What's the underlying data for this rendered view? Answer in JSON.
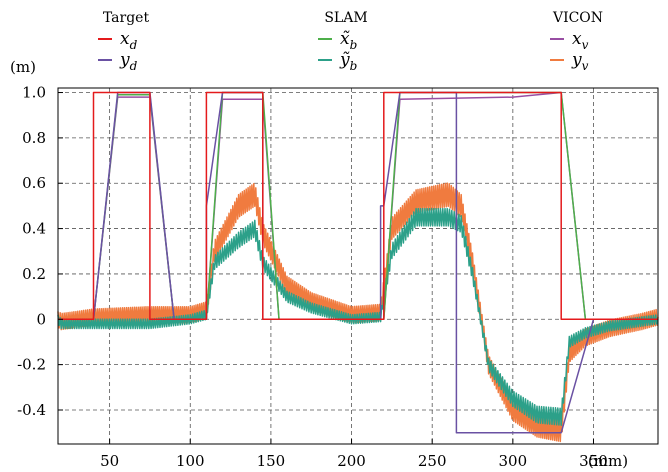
{
  "chart_data": {
    "type": "line",
    "title": "",
    "xlabel": "",
    "ylabel": "",
    "x_unit": "(mm)",
    "y_unit": "(m)",
    "xlim": [
      18,
      390
    ],
    "ylim": [
      -0.55,
      1.02
    ],
    "x_ticks": [
      50,
      100,
      150,
      200,
      250,
      300,
      350
    ],
    "x_tick_labels": [
      "50",
      "100",
      "150",
      "200",
      "250",
      "300",
      "350"
    ],
    "y_ticks": [
      1.0,
      0.8,
      0.6,
      0.4,
      0.2,
      0,
      -0.2,
      -0.4
    ],
    "y_tick_labels": [
      "1.0",
      "0.8",
      "0.6",
      "0.4",
      "0.2",
      "0",
      "-0.2",
      "-0.4"
    ],
    "grid": true,
    "legend_placement": "top",
    "legend_groups": [
      {
        "title": "Target",
        "entries": [
          {
            "label": "x_d",
            "base": "x",
            "sub": "d",
            "tilde": false,
            "color": "#e41a1c"
          },
          {
            "label": "y_d",
            "base": "y",
            "sub": "d",
            "tilde": false,
            "color": "#6a51a3"
          }
        ]
      },
      {
        "title": "SLAM",
        "entries": [
          {
            "label": "x̃_b",
            "base": "x",
            "sub": "b",
            "tilde": true,
            "color": "#4daf4a"
          },
          {
            "label": "ỹ_b",
            "base": "y",
            "sub": "b",
            "tilde": true,
            "color": "#2ca089"
          }
        ]
      },
      {
        "title": "VICON",
        "entries": [
          {
            "label": "x_v",
            "base": "x",
            "sub": "v",
            "tilde": false,
            "color": "#984ea3"
          },
          {
            "label": "y_v",
            "base": "y",
            "sub": "v",
            "tilde": false,
            "color": "#f07b3f"
          }
        ]
      }
    ],
    "series": [
      {
        "key": "x_d",
        "color": "#e41a1c",
        "x": [
          18,
          40,
          40,
          75,
          75,
          110,
          110,
          145,
          145,
          220,
          220,
          330,
          330,
          390
        ],
        "y": [
          0,
          0,
          1,
          1,
          0,
          0,
          1,
          1,
          0,
          0,
          1,
          1,
          0,
          0
        ]
      },
      {
        "key": "y_d",
        "color": "#6a51a3",
        "x": [
          18,
          40,
          55,
          75,
          90,
          110,
          110,
          120,
          145,
          145,
          155,
          218,
          218,
          220,
          230,
          265,
          265,
          330,
          350,
          390
        ],
        "y": [
          0,
          0,
          1,
          1,
          0,
          0,
          0.5,
          1,
          1,
          0,
          0,
          0,
          0.5,
          0.5,
          1,
          1,
          -0.5,
          -0.5,
          0,
          0
        ]
      },
      {
        "key": "x_b",
        "color": "#4daf4a",
        "x": [
          18,
          40,
          55,
          75,
          90,
          110,
          120,
          145,
          155,
          220,
          230,
          330,
          345,
          390
        ],
        "y": [
          0,
          0,
          0.99,
          0.99,
          0,
          0,
          1,
          1,
          0,
          0,
          1,
          1,
          0,
          0
        ]
      },
      {
        "key": "x_v",
        "color": "#984ea3",
        "x": [
          18,
          40,
          55,
          75,
          90,
          110,
          120,
          145,
          155,
          220,
          230,
          300,
          330,
          345,
          390
        ],
        "y": [
          0,
          0,
          0.98,
          0.98,
          0,
          0,
          0.97,
          0.97,
          0,
          0,
          0.97,
          0.98,
          1,
          0,
          0
        ]
      },
      {
        "key": "y_b",
        "color": "#2ca089",
        "x": [
          18,
          20,
          40,
          75,
          100,
          110,
          115,
          130,
          140,
          145,
          160,
          175,
          200,
          218,
          225,
          240,
          260,
          268,
          275,
          285,
          300,
          315,
          330,
          335,
          345,
          360,
          380,
          390
        ],
        "y": [
          0,
          -0.02,
          -0.02,
          -0.02,
          0,
          0.02,
          0.25,
          0.35,
          0.4,
          0.25,
          0.1,
          0.05,
          0,
          0.01,
          0.3,
          0.45,
          0.45,
          0.42,
          0.2,
          -0.2,
          -0.35,
          -0.42,
          -0.43,
          -0.1,
          -0.06,
          -0.03,
          -0.01,
          0
        ]
      },
      {
        "key": "y_v",
        "color": "#f07b3f",
        "x": [
          18,
          20,
          40,
          75,
          100,
          110,
          115,
          130,
          140,
          145,
          160,
          175,
          200,
          218,
          225,
          240,
          260,
          268,
          275,
          285,
          300,
          315,
          330,
          335,
          345,
          360,
          380,
          390
        ],
        "y": [
          0,
          -0.01,
          0.01,
          0.02,
          0.02,
          0.04,
          0.3,
          0.5,
          0.55,
          0.38,
          0.15,
          0.08,
          0.02,
          0.03,
          0.4,
          0.52,
          0.55,
          0.5,
          0.25,
          -0.2,
          -0.4,
          -0.47,
          -0.49,
          -0.15,
          -0.08,
          -0.04,
          -0.01,
          0.01
        ],
        "noise": true
      }
    ]
  }
}
